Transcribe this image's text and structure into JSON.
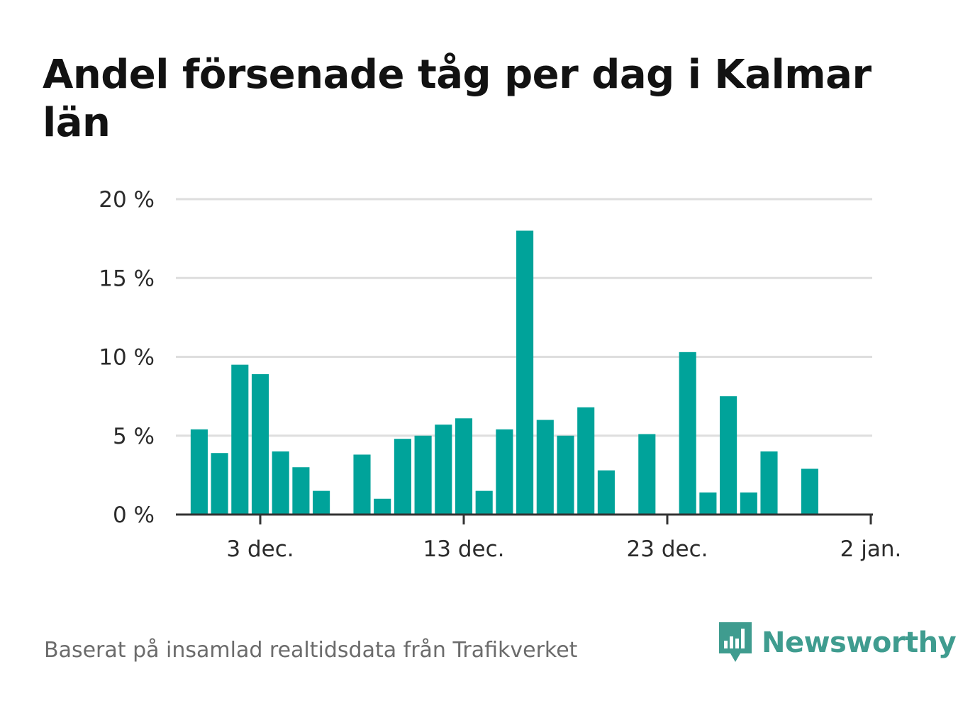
{
  "chart_data": {
    "type": "bar",
    "title": "Andel försenade tåg per dag i Kalmar län",
    "ylabel": "",
    "xlabel": "",
    "ylim": [
      0,
      20
    ],
    "yticks": [
      0,
      5,
      10,
      15,
      20
    ],
    "ytick_labels": [
      "0 %",
      "5 %",
      "10 %",
      "15 %",
      "20 %"
    ],
    "xticks": [
      {
        "day": 3,
        "label": "3 dec."
      },
      {
        "day": 13,
        "label": "13 dec."
      },
      {
        "day": 23,
        "label": "23 dec."
      },
      {
        "day": 33,
        "label": "2 jan."
      }
    ],
    "grid": true,
    "bar_color": "#00a39a",
    "series": [
      {
        "days": [
          -1,
          0,
          1,
          2,
          3,
          4,
          5,
          6,
          7,
          8,
          9,
          10,
          11,
          12,
          13,
          14,
          15,
          16,
          17,
          18,
          19,
          20,
          21,
          22,
          23,
          24,
          25,
          26,
          27,
          28,
          29,
          30,
          31,
          32,
          33
        ],
        "values": [
          null,
          5.4,
          3.9,
          9.5,
          8.9,
          4.0,
          3.0,
          1.5,
          null,
          3.8,
          1.0,
          4.8,
          5.0,
          5.7,
          6.1,
          1.5,
          5.4,
          18.0,
          6.0,
          5.0,
          6.8,
          2.8,
          null,
          5.1,
          null,
          10.3,
          1.4,
          7.5,
          1.4,
          4.0,
          null,
          2.9,
          null,
          null,
          null
        ]
      }
    ]
  },
  "footer": {
    "source": "Baserat på insamlad realtidsdata från Trafikverket",
    "brand": "Newsworthy"
  },
  "colors": {
    "brand": "#3f9c8f"
  }
}
